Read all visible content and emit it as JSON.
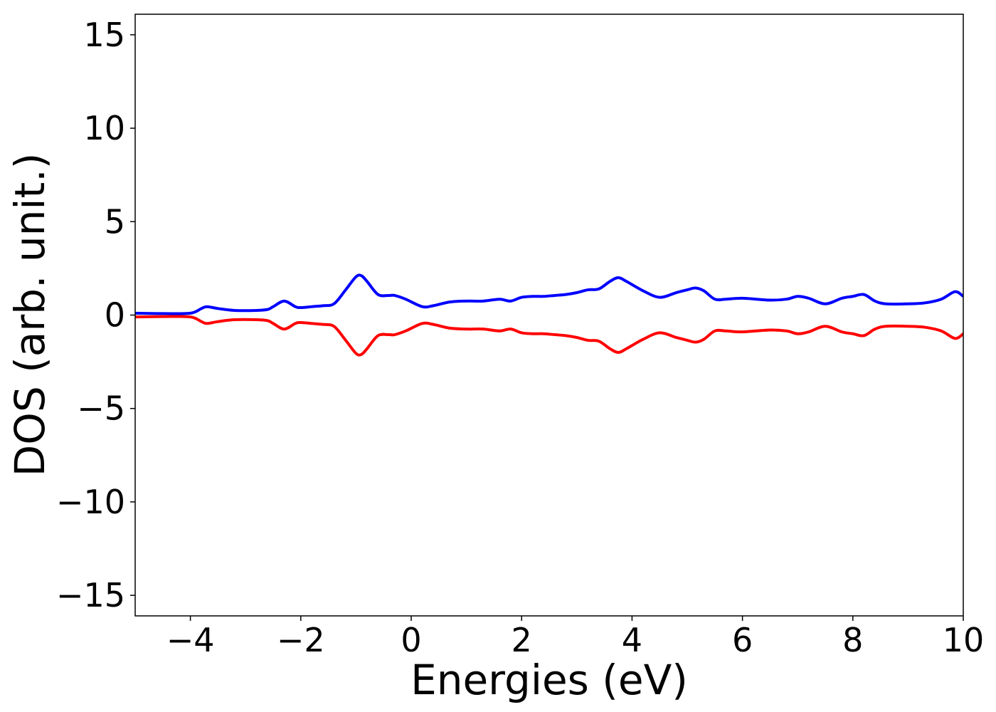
{
  "chart_data": {
    "type": "line",
    "title": "",
    "xlabel": "Energies (eV)",
    "ylabel": "DOS (arb. unit.)",
    "xlim": [
      -5,
      10
    ],
    "ylim": [
      -16.1,
      16.1
    ],
    "xticks": [
      -4,
      -2,
      0,
      2,
      4,
      6,
      8,
      10
    ],
    "xtick_labels": [
      "−4",
      "−2",
      "0",
      "2",
      "4",
      "6",
      "8",
      "10"
    ],
    "yticks": [
      15,
      10,
      5,
      0,
      -5,
      -10,
      -15
    ],
    "ytick_labels": [
      "15",
      "10",
      "5",
      "0",
      "−5",
      "−10",
      "−15"
    ],
    "grid": false,
    "legend": "none",
    "x": [
      -5,
      -4.5,
      -4,
      -3.8,
      -3.7,
      -3.5,
      -3.2,
      -2.8,
      -2.6,
      -2.5,
      -2.3,
      -2.1,
      -2.0,
      -1.8,
      -1.6,
      -1.4,
      -1.2,
      -1.0,
      -0.9,
      -0.8,
      -0.6,
      -0.4,
      -0.3,
      -0.1,
      0.2,
      0.4,
      0.7,
      1.0,
      1.3,
      1.6,
      1.8,
      2.0,
      2.2,
      2.4,
      2.6,
      2.8,
      3.0,
      3.2,
      3.4,
      3.6,
      3.75,
      3.9,
      4.2,
      4.5,
      4.8,
      5.0,
      5.15,
      5.3,
      5.5,
      5.7,
      6.0,
      6.5,
      6.8,
      7.0,
      7.2,
      7.5,
      7.8,
      8.0,
      8.2,
      8.4,
      8.6,
      9.0,
      9.3,
      9.6,
      9.85,
      10.0
    ],
    "series": [
      {
        "color": "#0000ff",
        "values": [
          0.1,
          0.08,
          0.1,
          0.35,
          0.45,
          0.35,
          0.25,
          0.25,
          0.3,
          0.45,
          0.75,
          0.45,
          0.4,
          0.45,
          0.5,
          0.6,
          1.3,
          2.05,
          2.1,
          1.8,
          1.1,
          1.05,
          1.05,
          0.85,
          0.45,
          0.5,
          0.7,
          0.75,
          0.75,
          0.85,
          0.75,
          0.95,
          1.0,
          1.0,
          1.05,
          1.1,
          1.2,
          1.35,
          1.4,
          1.8,
          2.0,
          1.8,
          1.3,
          0.95,
          1.2,
          1.35,
          1.45,
          1.3,
          0.85,
          0.85,
          0.9,
          0.8,
          0.85,
          1.0,
          0.9,
          0.6,
          0.9,
          1.0,
          1.1,
          0.75,
          0.6,
          0.6,
          0.65,
          0.85,
          1.25,
          1.0
        ]
      },
      {
        "color": "#ff0000",
        "values": [
          -0.1,
          -0.08,
          -0.1,
          -0.35,
          -0.45,
          -0.35,
          -0.25,
          -0.25,
          -0.3,
          -0.45,
          -0.75,
          -0.45,
          -0.4,
          -0.45,
          -0.5,
          -0.6,
          -1.3,
          -2.05,
          -2.1,
          -1.8,
          -1.1,
          -1.05,
          -1.05,
          -0.85,
          -0.45,
          -0.5,
          -0.7,
          -0.75,
          -0.75,
          -0.85,
          -0.75,
          -0.95,
          -1.0,
          -1.0,
          -1.05,
          -1.1,
          -1.2,
          -1.35,
          -1.4,
          -1.8,
          -2.0,
          -1.8,
          -1.3,
          -0.95,
          -1.2,
          -1.35,
          -1.45,
          -1.3,
          -0.85,
          -0.85,
          -0.9,
          -0.8,
          -0.85,
          -1.0,
          -0.9,
          -0.6,
          -0.9,
          -1.0,
          -1.1,
          -0.75,
          -0.6,
          -0.6,
          -0.65,
          -0.85,
          -1.25,
          -1.0
        ]
      }
    ]
  }
}
